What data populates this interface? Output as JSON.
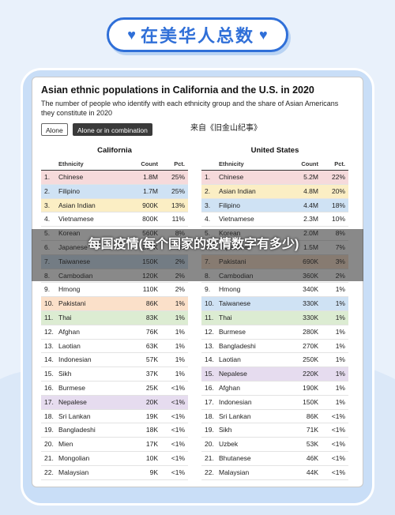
{
  "banner": {
    "text": "在美华人总数",
    "left_heart": "♥",
    "right_heart": "♥"
  },
  "chart": {
    "title": "Asian ethnic populations in California and the U.S. in 2020",
    "subtitle": "The number of people who identify with each ethnicity group and the share of Asian Americans they constitute in 2020",
    "buttons": {
      "alone": "Alone",
      "combination": "Alone or in combination"
    },
    "source": "来自《旧金山纪事》"
  },
  "overlay_caption": "每国疫情(每个国家的疫情数字有多少)",
  "colors": {
    "pink": "#f6dadb",
    "blue": "#cfe2f4",
    "yellow": "#fbeec4",
    "orange": "#fbe0c9",
    "green": "#dcecd2",
    "purple": "#e6dcef",
    "white": "#ffffff"
  },
  "chart_data": {
    "type": "table",
    "columns": [
      "Ethnicity",
      "Count",
      "Pct."
    ],
    "tables": [
      {
        "title": "California",
        "rows": [
          {
            "n": "1.",
            "eth": "Chinese",
            "count": "1.8M",
            "pct": "25%",
            "color": "pink"
          },
          {
            "n": "2.",
            "eth": "Filipino",
            "count": "1.7M",
            "pct": "25%",
            "color": "blue"
          },
          {
            "n": "3.",
            "eth": "Asian Indian",
            "count": "900K",
            "pct": "13%",
            "color": "yellow"
          },
          {
            "n": "4.",
            "eth": "Vietnamese",
            "count": "800K",
            "pct": "11%",
            "color": "white"
          },
          {
            "n": "5.",
            "eth": "Korean",
            "count": "560K",
            "pct": "8%",
            "color": "white"
          },
          {
            "n": "6.",
            "eth": "Japanese",
            "count": "270K",
            "pct": "4%",
            "color": "white"
          },
          {
            "n": "7.",
            "eth": "Taiwanese",
            "count": "150K",
            "pct": "2%",
            "color": "blue"
          },
          {
            "n": "8.",
            "eth": "Cambodian",
            "count": "120K",
            "pct": "2%",
            "color": "white"
          },
          {
            "n": "9.",
            "eth": "Hmong",
            "count": "110K",
            "pct": "2%",
            "color": "white"
          },
          {
            "n": "10.",
            "eth": "Pakistani",
            "count": "86K",
            "pct": "1%",
            "color": "orange"
          },
          {
            "n": "11.",
            "eth": "Thai",
            "count": "83K",
            "pct": "1%",
            "color": "green"
          },
          {
            "n": "12.",
            "eth": "Afghan",
            "count": "76K",
            "pct": "1%",
            "color": "white"
          },
          {
            "n": "13.",
            "eth": "Laotian",
            "count": "63K",
            "pct": "1%",
            "color": "white"
          },
          {
            "n": "14.",
            "eth": "Indonesian",
            "count": "57K",
            "pct": "1%",
            "color": "white"
          },
          {
            "n": "15.",
            "eth": "Sikh",
            "count": "37K",
            "pct": "1%",
            "color": "white"
          },
          {
            "n": "16.",
            "eth": "Burmese",
            "count": "25K",
            "pct": "<1%",
            "color": "white"
          },
          {
            "n": "17.",
            "eth": "Nepalese",
            "count": "20K",
            "pct": "<1%",
            "color": "purple"
          },
          {
            "n": "18.",
            "eth": "Sri Lankan",
            "count": "19K",
            "pct": "<1%",
            "color": "white"
          },
          {
            "n": "19.",
            "eth": "Bangladeshi",
            "count": "18K",
            "pct": "<1%",
            "color": "white"
          },
          {
            "n": "20.",
            "eth": "Mien",
            "count": "17K",
            "pct": "<1%",
            "color": "white"
          },
          {
            "n": "21.",
            "eth": "Mongolian",
            "count": "10K",
            "pct": "<1%",
            "color": "white"
          },
          {
            "n": "22.",
            "eth": "Malaysian",
            "count": "9K",
            "pct": "<1%",
            "color": "white"
          }
        ]
      },
      {
        "title": "United States",
        "rows": [
          {
            "n": "1.",
            "eth": "Chinese",
            "count": "5.2M",
            "pct": "22%",
            "color": "pink"
          },
          {
            "n": "2.",
            "eth": "Asian Indian",
            "count": "4.8M",
            "pct": "20%",
            "color": "yellow"
          },
          {
            "n": "3.",
            "eth": "Filipino",
            "count": "4.4M",
            "pct": "18%",
            "color": "blue"
          },
          {
            "n": "4.",
            "eth": "Vietnamese",
            "count": "2.3M",
            "pct": "10%",
            "color": "white"
          },
          {
            "n": "5.",
            "eth": "Korean",
            "count": "2.0M",
            "pct": "8%",
            "color": "white"
          },
          {
            "n": "6.",
            "eth": "Japanese",
            "count": "1.5M",
            "pct": "7%",
            "color": "white"
          },
          {
            "n": "7.",
            "eth": "Pakistani",
            "count": "690K",
            "pct": "3%",
            "color": "orange"
          },
          {
            "n": "8.",
            "eth": "Cambodian",
            "count": "360K",
            "pct": "2%",
            "color": "white"
          },
          {
            "n": "9.",
            "eth": "Hmong",
            "count": "340K",
            "pct": "1%",
            "color": "white"
          },
          {
            "n": "10.",
            "eth": "Taiwanese",
            "count": "330K",
            "pct": "1%",
            "color": "blue"
          },
          {
            "n": "11.",
            "eth": "Thai",
            "count": "330K",
            "pct": "1%",
            "color": "green"
          },
          {
            "n": "12.",
            "eth": "Burmese",
            "count": "280K",
            "pct": "1%",
            "color": "white"
          },
          {
            "n": "13.",
            "eth": "Bangladeshi",
            "count": "270K",
            "pct": "1%",
            "color": "white"
          },
          {
            "n": "14.",
            "eth": "Laotian",
            "count": "250K",
            "pct": "1%",
            "color": "white"
          },
          {
            "n": "15.",
            "eth": "Nepalese",
            "count": "220K",
            "pct": "1%",
            "color": "purple"
          },
          {
            "n": "16.",
            "eth": "Afghan",
            "count": "190K",
            "pct": "1%",
            "color": "white"
          },
          {
            "n": "17.",
            "eth": "Indonesian",
            "count": "150K",
            "pct": "1%",
            "color": "white"
          },
          {
            "n": "18.",
            "eth": "Sri Lankan",
            "count": "86K",
            "pct": "<1%",
            "color": "white"
          },
          {
            "n": "19.",
            "eth": "Sikh",
            "count": "71K",
            "pct": "<1%",
            "color": "white"
          },
          {
            "n": "20.",
            "eth": "Uzbek",
            "count": "53K",
            "pct": "<1%",
            "color": "white"
          },
          {
            "n": "21.",
            "eth": "Bhutanese",
            "count": "46K",
            "pct": "<1%",
            "color": "white"
          },
          {
            "n": "22.",
            "eth": "Malaysian",
            "count": "44K",
            "pct": "<1%",
            "color": "white"
          }
        ]
      }
    ]
  }
}
